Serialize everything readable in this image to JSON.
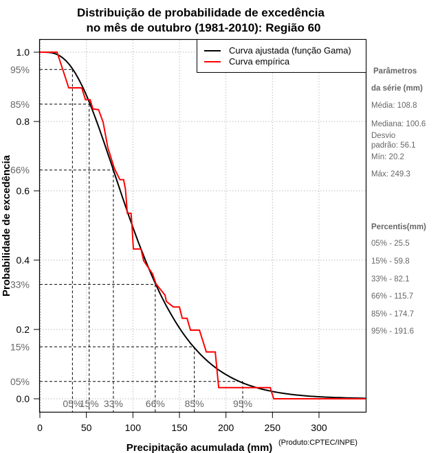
{
  "chart_data": {
    "type": "line",
    "title_lines": [
      "Distribuição de probabilidade de excedência",
      "no mês de outubro (1981-2010): Região 60"
    ],
    "xlabel": "Precipitação acumulada (mm)",
    "ylabel": "Probabilidade de excedência",
    "credit": "(Produto:CPTEC/INPE)",
    "xlim": [
      0,
      350
    ],
    "ylim": [
      -0.04,
      1.038
    ],
    "grid": true,
    "x_ticks": [
      0,
      50,
      100,
      150,
      200,
      250,
      300
    ],
    "x_tick_labels": [
      "0",
      "50",
      "100",
      "150",
      "200",
      "250",
      "300"
    ],
    "y_ticks": [
      0.0,
      0.2,
      0.4,
      0.6,
      0.8,
      1.0
    ],
    "y_tick_labels": [
      "0.0",
      "0.2",
      "0.4",
      "0.6",
      "0.8",
      "1.0"
    ],
    "legend": {
      "placement": "top-right",
      "entries": [
        {
          "label": "Curva ajustada (função Gama)",
          "color": "#000000"
        },
        {
          "label": "Curva empírica",
          "color": "#ff0000"
        }
      ]
    },
    "fitted_gamma": {
      "name": "Curva ajustada (função Gama)",
      "color": "#000000",
      "shape": 3.76,
      "scale": 28.93
    },
    "empirical": {
      "name": "Curva empírica",
      "color": "#ff0000",
      "points": [
        [
          0,
          1.0
        ],
        [
          18.5,
          1.0
        ],
        [
          31,
          0.897
        ],
        [
          45,
          0.897
        ],
        [
          49,
          0.863
        ],
        [
          54,
          0.863
        ],
        [
          57,
          0.836
        ],
        [
          63,
          0.834
        ],
        [
          68,
          0.798
        ],
        [
          73,
          0.725
        ],
        [
          80,
          0.665
        ],
        [
          86,
          0.632
        ],
        [
          90,
          0.632
        ],
        [
          92,
          0.604
        ],
        [
          94,
          0.535
        ],
        [
          98,
          0.535
        ],
        [
          99,
          0.5
        ],
        [
          100.5,
          0.432
        ],
        [
          108.6,
          0.432
        ],
        [
          111.6,
          0.398
        ],
        [
          121.2,
          0.36
        ],
        [
          124.9,
          0.331
        ],
        [
          134.5,
          0.299
        ],
        [
          136,
          0.281
        ],
        [
          143.4,
          0.265
        ],
        [
          150,
          0.265
        ],
        [
          153,
          0.232
        ],
        [
          158.2,
          0.232
        ],
        [
          161.9,
          0.198
        ],
        [
          171.5,
          0.198
        ],
        [
          178.9,
          0.135
        ],
        [
          188.5,
          0.135
        ],
        [
          192.2,
          0.032
        ],
        [
          247.6,
          0.032
        ],
        [
          251.3,
          0.0
        ],
        [
          350,
          0.0
        ]
      ]
    },
    "reference_lines": [
      {
        "label": "95%",
        "prob": 0.95,
        "x": 35,
        "bottom_label": "05%"
      },
      {
        "label": "85%",
        "prob": 0.85,
        "x": 53,
        "bottom_label": "15%"
      },
      {
        "label": "66%",
        "prob": 0.66,
        "x": 79,
        "bottom_label": "33%"
      },
      {
        "label": "33%",
        "prob": 0.33,
        "x": 124,
        "bottom_label": "66%"
      },
      {
        "label": "15%",
        "prob": 0.15,
        "x": 166,
        "bottom_label": "85%"
      },
      {
        "label": "05%",
        "prob": 0.05,
        "x": 218,
        "bottom_label": "95%"
      }
    ]
  },
  "side_panel": {
    "params_title_1": "Parâmetros",
    "params_title_2": "da série (mm)",
    "media": "Média: 108.8",
    "mediana": "Mediana: 100.6",
    "desvio_1": "Desvio",
    "desvio_2": "padrão: 56.1",
    "min": "Mín: 20.2",
    "max": "Máx: 249.3",
    "percentis_title": "Percentis(mm)",
    "percentis": [
      "05% - 25.5",
      "15% - 59.8",
      "33% - 82.1",
      "66% - 115.7",
      "85% - 174.7",
      "95% - 191.6"
    ]
  }
}
